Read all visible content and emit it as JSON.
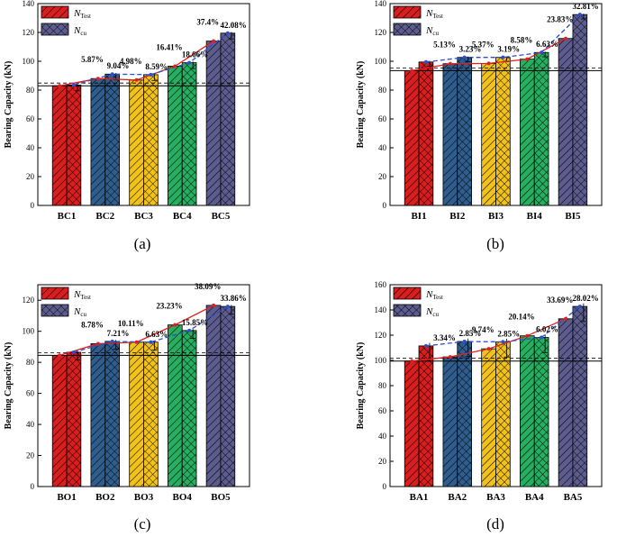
{
  "figure": {
    "legend": {
      "test": {
        "symbol": "N",
        "subscript": "Test"
      },
      "cu": {
        "symbol": "N",
        "subscript": "cu"
      }
    },
    "colors": [
      "#d81e1e",
      "#2f5d8e",
      "#f2c21b",
      "#27ae60",
      "#5c5c8f"
    ],
    "test_line_color": "#e02020",
    "cu_line_color": "#2a4fd0"
  },
  "chart_data": [
    {
      "type": "bar",
      "caption": "(a)",
      "ylabel": "Bearing Capacity (kN)",
      "ylim": [
        0,
        140
      ],
      "yticks": [
        0,
        20,
        40,
        60,
        80,
        100,
        120,
        140
      ],
      "categories": [
        "BC1",
        "BC2",
        "BC3",
        "BC4",
        "BC5"
      ],
      "series": [
        {
          "name": "N_Test",
          "values": [
            83,
            88,
            87,
            96.6,
            114
          ]
        },
        {
          "name": "N_cu",
          "values": [
            83.5,
            91.1,
            90.7,
            99.0,
            119.5
          ]
        }
      ],
      "error_bars": [
        4,
        4,
        4,
        4,
        4
      ],
      "reference_line": 83,
      "annotations": {
        "test": [
          "",
          "5.87%",
          "4.98%",
          "16.41%",
          "37.4%"
        ],
        "cu": [
          "",
          "9.04%",
          "8.59%",
          "18.06%",
          "42.08%"
        ]
      }
    },
    {
      "type": "bar",
      "caption": "(b)",
      "ylabel": "Bearing Capacity (kN)",
      "ylim": [
        0,
        140
      ],
      "yticks": [
        0,
        20,
        40,
        60,
        80,
        100,
        120,
        140
      ],
      "categories": [
        "BI1",
        "BI2",
        "BI3",
        "BI4",
        "BI5"
      ],
      "series": [
        {
          "name": "N_Test",
          "values": [
            93.5,
            98.3,
            98.5,
            101.5,
            115.8
          ]
        },
        {
          "name": "N_cu",
          "values": [
            99.5,
            102.7,
            102.7,
            106.1,
            132.4
          ]
        }
      ],
      "error_bars": [
        3,
        3,
        3,
        3,
        3
      ],
      "reference_line": 93.5,
      "annotations": {
        "test": [
          "",
          "5.13%",
          "5.37%",
          "8.58%",
          "23.83%"
        ],
        "cu": [
          "",
          "3.23%",
          "3.19%",
          "6.63%",
          "32.81%"
        ]
      }
    },
    {
      "type": "bar",
      "caption": "(c)",
      "ylabel": "Bearing Capacity (kN)",
      "ylim": [
        0,
        130
      ],
      "yticks": [
        0,
        20,
        40,
        60,
        80,
        100,
        120
      ],
      "categories": [
        "BO1",
        "BO2",
        "BO3",
        "BO4",
        "BO5"
      ],
      "series": [
        {
          "name": "N_Test",
          "values": [
            84.5,
            92.0,
            93.0,
            104.1,
            116.7
          ]
        },
        {
          "name": "N_cu",
          "values": [
            86.5,
            93.5,
            93.0,
            100.5,
            116.0
          ]
        }
      ],
      "error_bars": [
        5,
        5,
        5,
        5,
        5
      ],
      "reference_line": 84.5,
      "annotations": {
        "test": [
          "",
          "8.78%",
          "10.11%",
          "23.23%",
          "38.09%"
        ],
        "cu": [
          "",
          "7.21%",
          "6.63%",
          "15.85%",
          "33.86%"
        ]
      }
    },
    {
      "type": "bar",
      "caption": "(d)",
      "ylabel": "Bearing Capacity (kN)",
      "ylim": [
        0,
        160
      ],
      "yticks": [
        0,
        20,
        40,
        60,
        80,
        100,
        120,
        140,
        160
      ],
      "categories": [
        "BA1",
        "BA2",
        "BA3",
        "BA4",
        "BA5"
      ],
      "series": [
        {
          "name": "N_Test",
          "values": [
            99.5,
            102.8,
            109.2,
            119.5,
            133.0
          ]
        },
        {
          "name": "N_cu",
          "values": [
            111.5,
            115.0,
            114.7,
            118.2,
            142.8
          ]
        }
      ],
      "error_bars": [
        12,
        12,
        12,
        12,
        12
      ],
      "reference_line": 99.5,
      "annotations": {
        "test": [
          "",
          "3.34%",
          "9.74%",
          "20.14%",
          "33.69%"
        ],
        "cu": [
          "",
          "2.85%",
          "2.85%",
          "6.02%",
          "28.02%"
        ]
      }
    }
  ]
}
